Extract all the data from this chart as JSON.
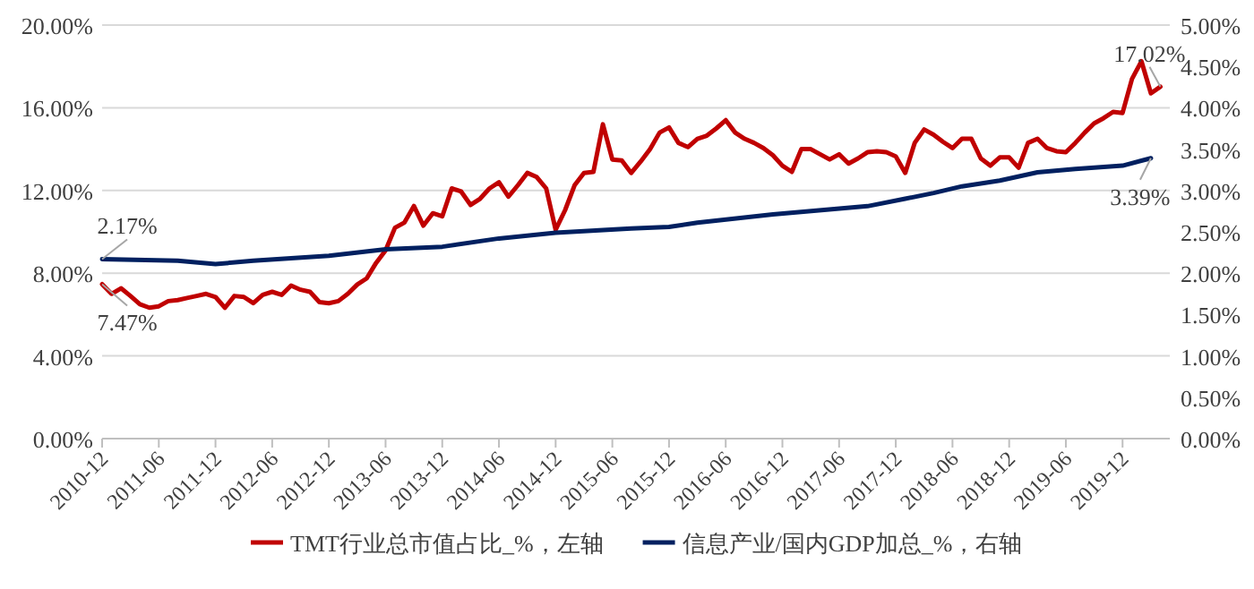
{
  "chart_data": {
    "type": "line",
    "xlim": [
      "2010-12",
      "2020-05"
    ],
    "xticks": [
      "2010-12",
      "2011-06",
      "2011-12",
      "2012-06",
      "2012-12",
      "2013-06",
      "2013-12",
      "2014-06",
      "2014-12",
      "2015-06",
      "2015-12",
      "2016-06",
      "2016-12",
      "2017-06",
      "2017-12",
      "2018-06",
      "2018-12",
      "2019-06",
      "2019-12"
    ],
    "ylim": [
      0,
      20
    ],
    "yticks": [
      {
        "value": 0,
        "label": "0.00%"
      },
      {
        "value": 4,
        "label": "4.00%"
      },
      {
        "value": 8,
        "label": "8.00%"
      },
      {
        "value": 12,
        "label": "12.00%"
      },
      {
        "value": 16,
        "label": "16.00%"
      },
      {
        "value": 20,
        "label": "20.00%"
      }
    ],
    "y2lim": [
      0,
      5
    ],
    "y2ticks": [
      {
        "value": 0,
        "label": "0.00%"
      },
      {
        "value": 0.5,
        "label": "0.50%"
      },
      {
        "value": 1,
        "label": "1.00%"
      },
      {
        "value": 1.5,
        "label": "1.50%"
      },
      {
        "value": 2,
        "label": "2.00%"
      },
      {
        "value": 2.5,
        "label": "2.50%"
      },
      {
        "value": 3,
        "label": "3.00%"
      },
      {
        "value": 3.5,
        "label": "3.50%"
      },
      {
        "value": 4,
        "label": "4.00%"
      },
      {
        "value": 4.5,
        "label": "4.50%"
      },
      {
        "value": 5,
        "label": "5.00%"
      }
    ],
    "grid": "y",
    "legend": "bottom",
    "series": [
      {
        "name": "TMT行业总市值占比_%，左轴",
        "color": "#c00000",
        "axis": "y",
        "x": [
          "2010-12",
          "2011-01",
          "2011-02",
          "2011-03",
          "2011-04",
          "2011-05",
          "2011-06",
          "2011-07",
          "2011-08",
          "2011-09",
          "2011-10",
          "2011-11",
          "2011-12",
          "2012-01",
          "2012-02",
          "2012-03",
          "2012-04",
          "2012-05",
          "2012-06",
          "2012-07",
          "2012-08",
          "2012-09",
          "2012-10",
          "2012-11",
          "2012-12",
          "2013-01",
          "2013-02",
          "2013-03",
          "2013-04",
          "2013-05",
          "2013-06",
          "2013-07",
          "2013-08",
          "2013-09",
          "2013-10",
          "2013-11",
          "2013-12",
          "2014-01",
          "2014-02",
          "2014-03",
          "2014-04",
          "2014-05",
          "2014-06",
          "2014-07",
          "2014-08",
          "2014-09",
          "2014-10",
          "2014-11",
          "2014-12",
          "2015-01",
          "2015-02",
          "2015-03",
          "2015-04",
          "2015-05",
          "2015-06",
          "2015-07",
          "2015-08",
          "2015-09",
          "2015-10",
          "2015-11",
          "2015-12",
          "2016-01",
          "2016-02",
          "2016-03",
          "2016-04",
          "2016-05",
          "2016-06",
          "2016-07",
          "2016-08",
          "2016-09",
          "2016-10",
          "2016-11",
          "2016-12",
          "2017-01",
          "2017-02",
          "2017-03",
          "2017-04",
          "2017-05",
          "2017-06",
          "2017-07",
          "2017-08",
          "2017-09",
          "2017-10",
          "2017-11",
          "2017-12",
          "2018-01",
          "2018-02",
          "2018-03",
          "2018-04",
          "2018-05",
          "2018-06",
          "2018-07",
          "2018-08",
          "2018-09",
          "2018-10",
          "2018-11",
          "2018-12",
          "2019-01",
          "2019-02",
          "2019-03",
          "2019-04",
          "2019-05",
          "2019-06",
          "2019-07",
          "2019-08",
          "2019-09",
          "2019-10",
          "2019-11",
          "2019-12",
          "2020-01",
          "2020-02",
          "2020-03",
          "2020-04"
        ],
        "values": [
          7.47,
          7.0,
          7.27,
          6.9,
          6.5,
          6.33,
          6.4,
          6.65,
          6.7,
          6.8,
          6.9,
          7.0,
          6.85,
          6.33,
          6.9,
          6.85,
          6.55,
          6.95,
          7.1,
          6.95,
          7.4,
          7.2,
          7.1,
          6.6,
          6.55,
          6.65,
          7.0,
          7.45,
          7.75,
          8.5,
          9.1,
          10.2,
          10.45,
          11.25,
          10.3,
          10.9,
          10.75,
          12.1,
          11.95,
          11.3,
          11.6,
          12.1,
          12.4,
          11.7,
          12.25,
          12.85,
          12.65,
          12.1,
          10.1,
          11.05,
          12.25,
          12.85,
          12.9,
          15.2,
          13.5,
          13.45,
          12.85,
          13.4,
          14.0,
          14.8,
          15.05,
          14.3,
          14.1,
          14.5,
          14.65,
          15.0,
          15.4,
          14.8,
          14.5,
          14.3,
          14.05,
          13.7,
          13.2,
          12.9,
          14.0,
          14.0,
          13.75,
          13.5,
          13.75,
          13.3,
          13.55,
          13.85,
          13.9,
          13.85,
          13.65,
          12.85,
          14.3,
          14.95,
          14.7,
          14.35,
          14.05,
          14.5,
          14.5,
          13.55,
          13.2,
          13.6,
          13.6,
          13.1,
          14.3,
          14.5,
          14.05,
          13.9,
          13.85,
          14.3,
          14.8,
          15.25,
          15.5,
          15.8,
          15.75,
          17.4,
          18.25,
          16.7,
          17.02
        ]
      },
      {
        "name": "信息产业/国内GDP加总_%，右轴",
        "color": "#002060",
        "axis": "y2",
        "x": [
          "2010-12",
          "2011-08",
          "2011-12",
          "2012-04",
          "2012-12",
          "2013-06",
          "2013-12",
          "2014-06",
          "2014-12",
          "2015-08",
          "2015-12",
          "2016-03",
          "2016-11",
          "2017-09",
          "2018-01",
          "2018-04",
          "2018-07",
          "2018-11",
          "2019-03",
          "2019-07",
          "2019-12",
          "2020-03"
        ],
        "value_labels": [
          "2.17%",
          null,
          null,
          null,
          null,
          null,
          null,
          null,
          null,
          null,
          null,
          null,
          null,
          null,
          null,
          null,
          null,
          null,
          null,
          null,
          null,
          "3.39%"
        ],
        "values": [
          2.17,
          2.15,
          2.11,
          2.15,
          2.21,
          2.29,
          2.32,
          2.42,
          2.49,
          2.54,
          2.56,
          2.61,
          2.71,
          2.81,
          2.9,
          2.97,
          3.05,
          3.12,
          3.22,
          3.26,
          3.3,
          3.39
        ]
      }
    ],
    "annotations": [
      {
        "text": "7.47%",
        "x": "2010-12",
        "y": 7.47
      },
      {
        "text": "17.02%",
        "x": "2020-04",
        "y": 17.02
      }
    ]
  }
}
